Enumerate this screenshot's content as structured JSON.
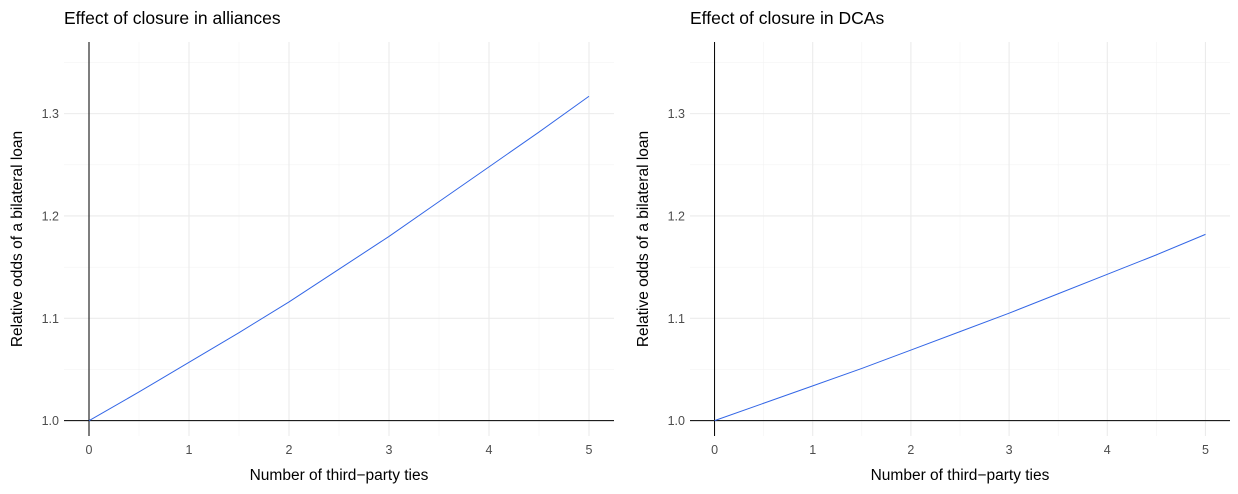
{
  "colors": {
    "series": "#3366e6",
    "grid": "#ebebeb",
    "axis": "#000000",
    "tick_text": "#4d4d4d"
  },
  "chart_data": [
    {
      "type": "line",
      "title": "Effect of closure in alliances",
      "xlabel": "Number of third−party ties",
      "ylabel": "Relative odds of a bilateral loan",
      "xlim": [
        -0.25,
        5.25
      ],
      "ylim": [
        0.985,
        1.37
      ],
      "x_ticks": [
        "0",
        "1",
        "2",
        "3",
        "4",
        "5"
      ],
      "y_ticks": [
        "1.0",
        "1.1",
        "1.2",
        "1.3"
      ],
      "grid": true,
      "series": [
        {
          "x": [
            0,
            0.5,
            1,
            1.5,
            2,
            2.5,
            3,
            3.5,
            4,
            4.5,
            5
          ],
          "values": [
            1.0,
            1.028,
            1.057,
            1.086,
            1.116,
            1.148,
            1.18,
            1.214,
            1.248,
            1.282,
            1.317
          ]
        }
      ]
    },
    {
      "type": "line",
      "title": "Effect of closure in DCAs",
      "xlabel": "Number of third−party ties",
      "ylabel": "Relative odds of a bilateral loan",
      "xlim": [
        -0.25,
        5.25
      ],
      "ylim": [
        0.985,
        1.37
      ],
      "x_ticks": [
        "0",
        "1",
        "2",
        "3",
        "4",
        "5"
      ],
      "y_ticks": [
        "1.0",
        "1.1",
        "1.2",
        "1.3"
      ],
      "grid": true,
      "series": [
        {
          "x": [
            0,
            0.5,
            1,
            1.5,
            2,
            2.5,
            3,
            3.5,
            4,
            4.5,
            5
          ],
          "values": [
            1.0,
            1.017,
            1.034,
            1.051,
            1.069,
            1.087,
            1.105,
            1.124,
            1.143,
            1.162,
            1.182
          ]
        }
      ]
    }
  ]
}
